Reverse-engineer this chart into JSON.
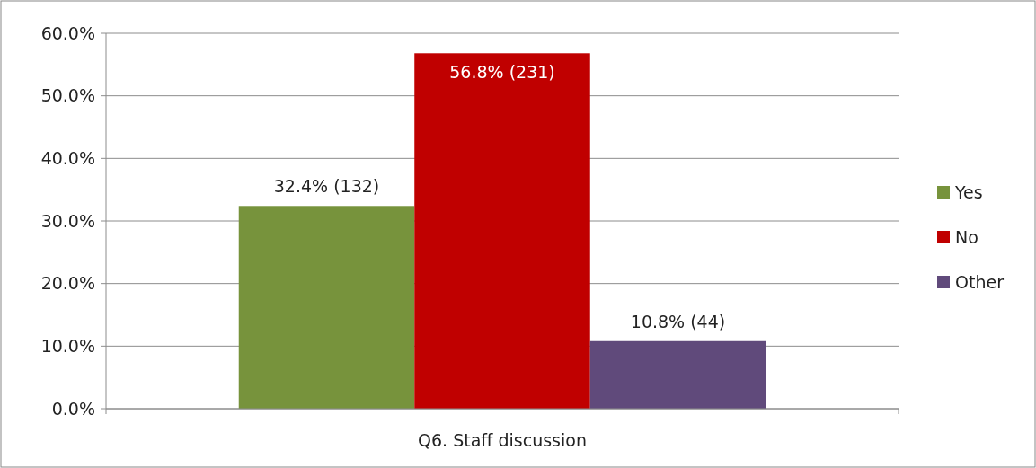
{
  "chart_data": {
    "type": "bar",
    "categories": [
      "Q6. Staff discussion"
    ],
    "series": [
      {
        "name": "Yes",
        "color": "#77933c",
        "values": [
          32.4
        ],
        "value_labels": [
          "32.4% (132)"
        ]
      },
      {
        "name": "No",
        "color": "#c00000",
        "values": [
          56.8
        ],
        "value_labels": [
          "56.8% (231)"
        ]
      },
      {
        "name": "Other",
        "color": "#604a7b",
        "values": [
          10.8
        ],
        "value_labels": [
          "10.8% (44)"
        ]
      }
    ],
    "ylim": [
      0,
      60
    ],
    "yticks": [
      {
        "value": 0,
        "label": "0.0%"
      },
      {
        "value": 10,
        "label": "10.0%"
      },
      {
        "value": 20,
        "label": "20.0%"
      },
      {
        "value": 30,
        "label": "30.0%"
      },
      {
        "value": 40,
        "label": "40.0%"
      },
      {
        "value": 50,
        "label": "50.0%"
      },
      {
        "value": 60,
        "label": "60.0%"
      }
    ],
    "grid": "y",
    "legend": "right"
  }
}
